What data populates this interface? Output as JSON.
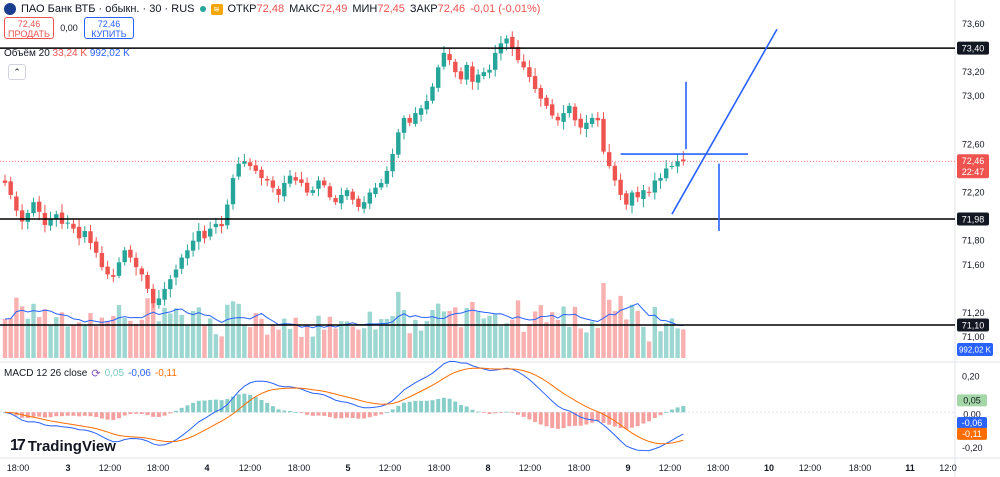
{
  "header": {
    "symbol": "ПАО Банк ВТБ · обыкн. · 30 · RUS",
    "open_label": "ОТКР",
    "open": "72,48",
    "high_label": "МАКС",
    "high": "72,49",
    "low_label": "МИН",
    "low": "72,45",
    "close_label": "ЗАКР",
    "close": "72,46",
    "change": "-0,01 (-0,01%)",
    "flag_glyph": "≋"
  },
  "trade": {
    "sell_price": "72,46",
    "sell_label": "ПРОДАТЬ",
    "spread": "0,00",
    "buy_price": "72,46",
    "buy_label": "КУПИТЬ"
  },
  "volume_legend": {
    "label": "Объём 20",
    "volume": "33,24 K",
    "ma": "992,02 K"
  },
  "collapse_glyph": "⌃",
  "macd_legend": {
    "label": "MACD 12 26 close",
    "hist": "0,05",
    "macd": "-0,06",
    "signal": "-0,11"
  },
  "brand": {
    "name": "TradingView",
    "mark": "17"
  },
  "colors": {
    "up": "#26a69a",
    "down": "#ef5350",
    "macd": "#2962ff",
    "signal": "#ff6d00",
    "drawing": "#2962ff"
  },
  "chart_data": {
    "type": "candlestick",
    "interval": "30",
    "price_axis": {
      "range": [
        70.95,
        73.65
      ],
      "ticks": [
        "73,60",
        "73,20",
        "73,00",
        "72,60",
        "72,20",
        "71,80",
        "71,60",
        "71,20",
        "71,00"
      ]
    },
    "time_axis": [
      "18:00",
      "3",
      "12:00",
      "18:00",
      "4",
      "12:00",
      "18:00",
      "5",
      "12:00",
      "18:00",
      "8",
      "12:00",
      "18:00",
      "9",
      "12:00",
      "18:00",
      "10",
      "12:00",
      "18:00",
      "11",
      "12:0"
    ],
    "horizontal_levels": [
      {
        "price": 73.4,
        "label": "73,40"
      },
      {
        "price": 71.98,
        "label": "71,98"
      },
      {
        "price": 71.1,
        "label": "71,10"
      }
    ],
    "last_price": {
      "price": 72.46,
      "label": "72,46",
      "countdown": "22:47"
    },
    "volume_ma_label": "992,02 K",
    "macd_axis": {
      "range": [
        -0.24,
        0.26
      ],
      "ticks": [
        "0,20",
        "0,00",
        "-0,20"
      ]
    },
    "macd_badges": {
      "hist": "0,05",
      "zero": "0,00",
      "macd": "-0,06",
      "signal": "-0,11"
    },
    "series": [
      {
        "name": "close",
        "values": [
          72.28,
          72.18,
          72.05,
          71.96,
          72.03,
          72.12,
          72.04,
          71.93,
          71.98,
          72.02,
          71.94,
          71.95,
          71.9,
          71.82,
          71.88,
          71.78,
          71.7,
          71.58,
          71.52,
          71.5,
          71.62,
          71.72,
          71.66,
          71.58,
          71.52,
          71.4,
          71.28,
          71.32,
          71.4,
          71.48,
          71.56,
          71.66,
          71.72,
          71.8,
          71.88,
          71.82,
          71.9,
          71.94,
          71.92,
          72.1,
          72.32,
          72.44,
          72.46,
          72.42,
          72.38,
          72.32,
          72.3,
          72.24,
          72.18,
          72.28,
          72.34,
          72.3,
          72.28,
          72.2,
          72.22,
          72.3,
          72.26,
          72.16,
          72.12,
          72.18,
          72.22,
          72.14,
          72.08,
          72.12,
          72.2,
          72.24,
          72.28,
          72.38,
          72.52,
          72.7,
          72.82,
          72.78,
          72.86,
          72.9,
          72.96,
          73.08,
          73.24,
          73.36,
          73.3,
          73.2,
          73.14,
          73.26,
          73.12,
          73.18,
          73.2,
          73.22,
          73.36,
          73.44,
          73.48,
          73.4,
          73.3,
          73.24,
          73.16,
          73.06,
          72.98,
          72.92,
          72.84,
          72.8,
          72.86,
          72.92,
          72.8,
          72.74,
          72.78,
          72.82,
          72.8,
          72.54,
          72.42,
          72.3,
          72.18,
          72.1,
          72.2,
          72.16,
          72.22,
          72.2,
          72.3,
          72.32,
          72.4,
          72.42,
          72.46,
          72.46
        ]
      }
    ],
    "drawings": [
      {
        "type": "ascending-triangle",
        "points_time_index": [
          108,
          117,
          123
        ],
        "prices": [
          72.52,
          72.02,
          72.52
        ]
      },
      {
        "type": "measured-move",
        "direction": "up",
        "prices": [
          72.56,
          73.12
        ]
      },
      {
        "type": "measured-move",
        "direction": "down",
        "prices": [
          72.44,
          71.88
        ]
      }
    ]
  }
}
